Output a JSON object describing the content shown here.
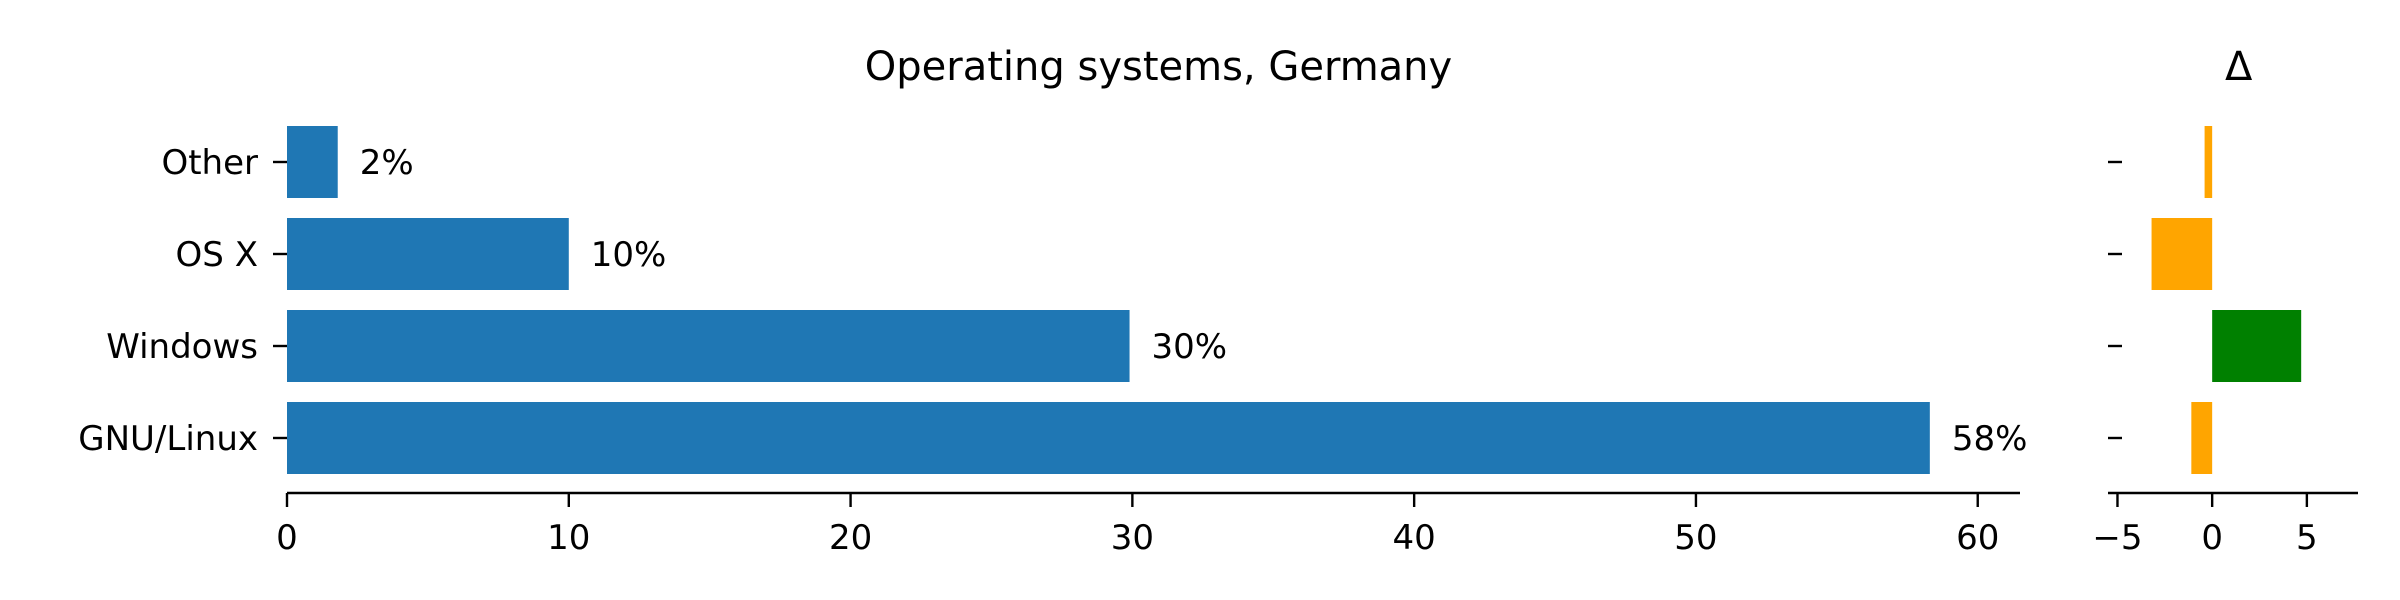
{
  "chart_data": [
    {
      "type": "bar",
      "orientation": "horizontal",
      "title": "Operating systems, Germany",
      "categories": [
        "GNU/Linux",
        "Windows",
        "OS X",
        "Other"
      ],
      "values": [
        58.3,
        29.9,
        10.0,
        1.8
      ],
      "data_labels": [
        "58%",
        "30%",
        "10%",
        "2%"
      ],
      "xlim": [
        0,
        61.5
      ],
      "xticks": [
        "0",
        "10",
        "20",
        "30",
        "40",
        "50",
        "60"
      ],
      "xlabel": "",
      "ylabel": "",
      "color": "#1f77b4",
      "grid": false,
      "legend": "none"
    },
    {
      "type": "bar",
      "orientation": "horizontal",
      "title": "Δ",
      "categories": [
        "GNU/Linux",
        "Windows",
        "OS X",
        "Other"
      ],
      "values": [
        -1.1,
        4.7,
        -3.2,
        -0.4
      ],
      "colors": [
        "#ffa500",
        "#008000",
        "#ffa500",
        "#ffa500"
      ],
      "xlim": [
        -5.5,
        7.7
      ],
      "xticks": [
        "−5",
        "0",
        "5"
      ],
      "xlabel": "",
      "ylabel": "",
      "grid": false,
      "legend": "none"
    }
  ]
}
